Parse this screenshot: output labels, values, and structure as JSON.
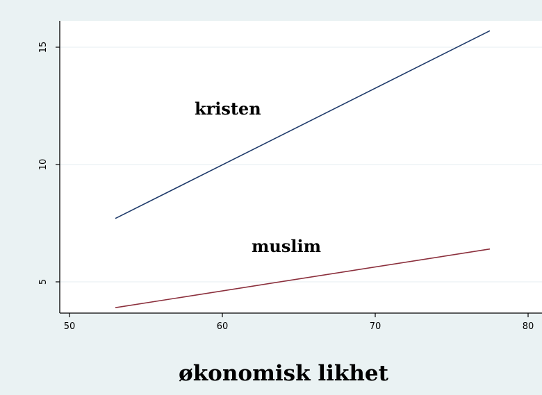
{
  "chart_data": {
    "type": "line",
    "title": "",
    "xlabel": "økonomisk likhet",
    "ylabel": "",
    "xlim": [
      49.5,
      80.5
    ],
    "ylim": [
      3.5,
      16
    ],
    "x_ticks": [
      "50",
      "60",
      "70",
      "80"
    ],
    "y_ticks": [
      "5",
      "10",
      "15"
    ],
    "grid": true,
    "legend": "none",
    "series": [
      {
        "label_text": "kristen",
        "color": "#1f3b6b",
        "x": [
          53,
          77.5
        ],
        "y": [
          7.7,
          15.7
        ]
      },
      {
        "label_text": "muslim",
        "color": "#8b2f3c",
        "x": [
          53,
          77.5
        ],
        "y": [
          3.9,
          6.4
        ]
      }
    ]
  },
  "colors": {
    "background": "#eaf2f3",
    "plot_area": "#ffffff",
    "grid": "#e6eef0",
    "axis": "#000000"
  }
}
